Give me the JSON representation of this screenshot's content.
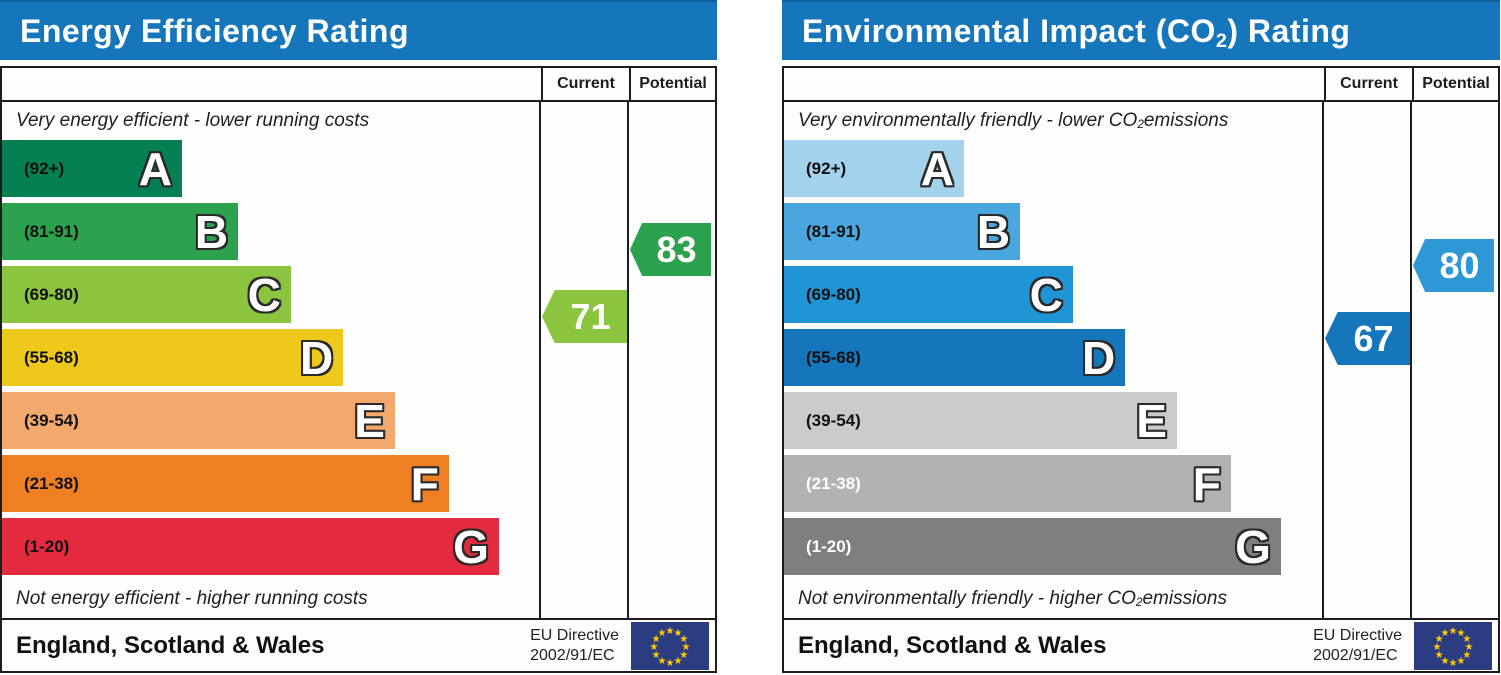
{
  "accent": {
    "header_blue": "#1576bc",
    "border_black": "#1c1c1c",
    "eu_flag_blue": "#2b3d80",
    "eu_star_yellow": "#ffcc00"
  },
  "chart_data": [
    {
      "type": "bar",
      "id": "energy-efficiency-rating",
      "title_pre": "Energy Efficiency Rating",
      "title_sub": "",
      "title_post": "",
      "col_current": "Current",
      "col_potential": "Potential",
      "caption_top": {
        "pre": "Very energy efficient - lower running costs",
        "sub": "",
        "post": ""
      },
      "caption_bottom": {
        "pre": "Not energy efficient - higher running costs",
        "sub": "",
        "post": ""
      },
      "bands": [
        {
          "letter": "A",
          "range": "(92+)",
          "min": 92,
          "max": 100,
          "color": "#048052",
          "label_color": "#101010",
          "width_pct": 33.4
        },
        {
          "letter": "B",
          "range": "(81-91)",
          "min": 81,
          "max": 91,
          "color": "#2ca24f",
          "label_color": "#101010",
          "width_pct": 43.8
        },
        {
          "letter": "C",
          "range": "(69-80)",
          "min": 69,
          "max": 80,
          "color": "#8bc43e",
          "label_color": "#101010",
          "width_pct": 53.6
        },
        {
          "letter": "D",
          "range": "(55-68)",
          "min": 55,
          "max": 68,
          "color": "#eec81a",
          "label_color": "#101010",
          "width_pct": 63.3
        },
        {
          "letter": "E",
          "range": "(39-54)",
          "min": 39,
          "max": 54,
          "color": "#f3a96e",
          "label_color": "#101010",
          "width_pct": 72.9
        },
        {
          "letter": "F",
          "range": "(21-38)",
          "min": 21,
          "max": 38,
          "color": "#ee8023",
          "label_color": "#101010",
          "width_pct": 82.9
        },
        {
          "letter": "G",
          "range": "(1-20)",
          "min": 1,
          "max": 20,
          "color": "#e32a3f",
          "label_color": "#101010",
          "width_pct": 92.2
        }
      ],
      "current": {
        "label": "Current",
        "value": 71,
        "band": "C",
        "color": "#8bc43e"
      },
      "potential": {
        "label": "Potential",
        "value": 83,
        "band": "B",
        "color": "#2ca24f"
      },
      "footer": {
        "region": "England, Scotland & Wales",
        "directive_line1": "EU Directive",
        "directive_line2": "2002/91/EC"
      }
    },
    {
      "type": "bar",
      "id": "environmental-impact-co2-rating",
      "title_pre": "Environmental Impact (CO",
      "title_sub": "2",
      "title_post": ") Rating",
      "col_current": "Current",
      "col_potential": "Potential",
      "caption_top": {
        "pre": "Very environmentally friendly - lower CO",
        "sub": "2",
        "post": " emissions"
      },
      "caption_bottom": {
        "pre": "Not environmentally friendly - higher CO",
        "sub": "2",
        "post": " emissions"
      },
      "bands": [
        {
          "letter": "A",
          "range": "(92+)",
          "min": 92,
          "max": 100,
          "color": "#a3d2ec",
          "label_color": "#101010",
          "width_pct": 33.4
        },
        {
          "letter": "B",
          "range": "(81-91)",
          "min": 81,
          "max": 91,
          "color": "#4aa6df",
          "label_color": "#101010",
          "width_pct": 43.8
        },
        {
          "letter": "C",
          "range": "(69-80)",
          "min": 69,
          "max": 80,
          "color": "#2095d6",
          "label_color": "#101010",
          "width_pct": 53.6
        },
        {
          "letter": "D",
          "range": "(55-68)",
          "min": 55,
          "max": 68,
          "color": "#1576bc",
          "label_color": "#101010",
          "width_pct": 63.3
        },
        {
          "letter": "E",
          "range": "(39-54)",
          "min": 39,
          "max": 54,
          "color": "#cbcbcb",
          "label_color": "#101010",
          "width_pct": 72.9
        },
        {
          "letter": "F",
          "range": "(21-38)",
          "min": 21,
          "max": 38,
          "color": "#b2b2b2",
          "label_color": "#ffffff",
          "width_pct": 82.9
        },
        {
          "letter": "G",
          "range": "(1-20)",
          "min": 1,
          "max": 20,
          "color": "#7f7f7f",
          "label_color": "#ffffff",
          "width_pct": 92.2
        }
      ],
      "current": {
        "label": "Current",
        "value": 67,
        "band": "D",
        "color": "#1576bc"
      },
      "potential": {
        "label": "Potential",
        "value": 80,
        "band": "C",
        "color": "#2e97d5"
      },
      "footer": {
        "region": "England, Scotland & Wales",
        "directive_line1": "EU Directive",
        "directive_line2": "2002/91/EC"
      }
    }
  ]
}
